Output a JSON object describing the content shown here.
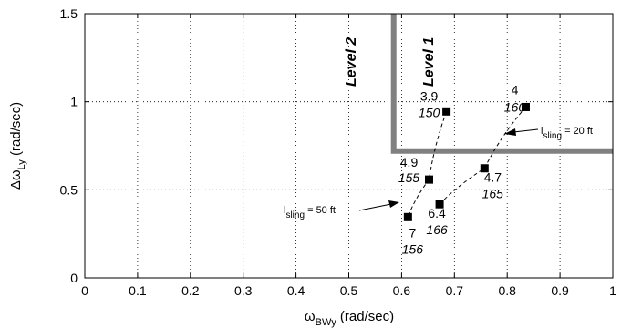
{
  "chart_data": {
    "type": "scatter",
    "xlabel": {
      "base": "ω",
      "sub": "BWy",
      "unit": " (rad/sec)"
    },
    "ylabel": {
      "base": "Δω",
      "sub": "Ly",
      "unit": " (rad/sec)"
    },
    "xlim": [
      0,
      1
    ],
    "ylim": [
      0,
      1.5
    ],
    "xticks": [
      0,
      0.1,
      0.2,
      0.3,
      0.4,
      0.5,
      0.6,
      0.7,
      0.8,
      0.9,
      1
    ],
    "yticks": [
      0,
      0.5,
      1,
      1.5
    ],
    "xtick_labels": [
      "0",
      "0.1",
      "0.2",
      "0.3",
      "0.4",
      "0.5",
      "0.6",
      "0.7",
      "0.8",
      "0.9",
      "1"
    ],
    "ytick_labels": [
      "0",
      "0.5",
      "1",
      "1.5"
    ],
    "grid": "dotted",
    "series": [
      {
        "sling_label": {
          "base": "l",
          "sub": "sling",
          "rest": " = 50 ft"
        },
        "points": [
          {
            "x": 0.685,
            "y": 0.945,
            "label": "3.9",
            "label_italic": "150"
          },
          {
            "x": 0.652,
            "y": 0.558,
            "label": "4.9",
            "label_italic": "155"
          },
          {
            "x": 0.612,
            "y": 0.345,
            "label": "7",
            "label_italic": "156"
          }
        ]
      },
      {
        "sling_label": {
          "base": "l",
          "sub": "sling",
          "rest": " = 20 ft"
        },
        "points": [
          {
            "x": 0.835,
            "y": 0.97,
            "label": "4",
            "label_italic": "160"
          },
          {
            "x": 0.757,
            "y": 0.622,
            "label": "4.7",
            "label_italic": "165"
          },
          {
            "x": 0.672,
            "y": 0.418,
            "label": "6.4",
            "label_italic": "166"
          }
        ]
      }
    ],
    "boundaries": [
      {
        "name": "Level 1",
        "type": "corner",
        "x": 0.585,
        "y": 0.72,
        "color": "#808080"
      }
    ],
    "region_labels": [
      "Level 2",
      "Level 1"
    ]
  }
}
